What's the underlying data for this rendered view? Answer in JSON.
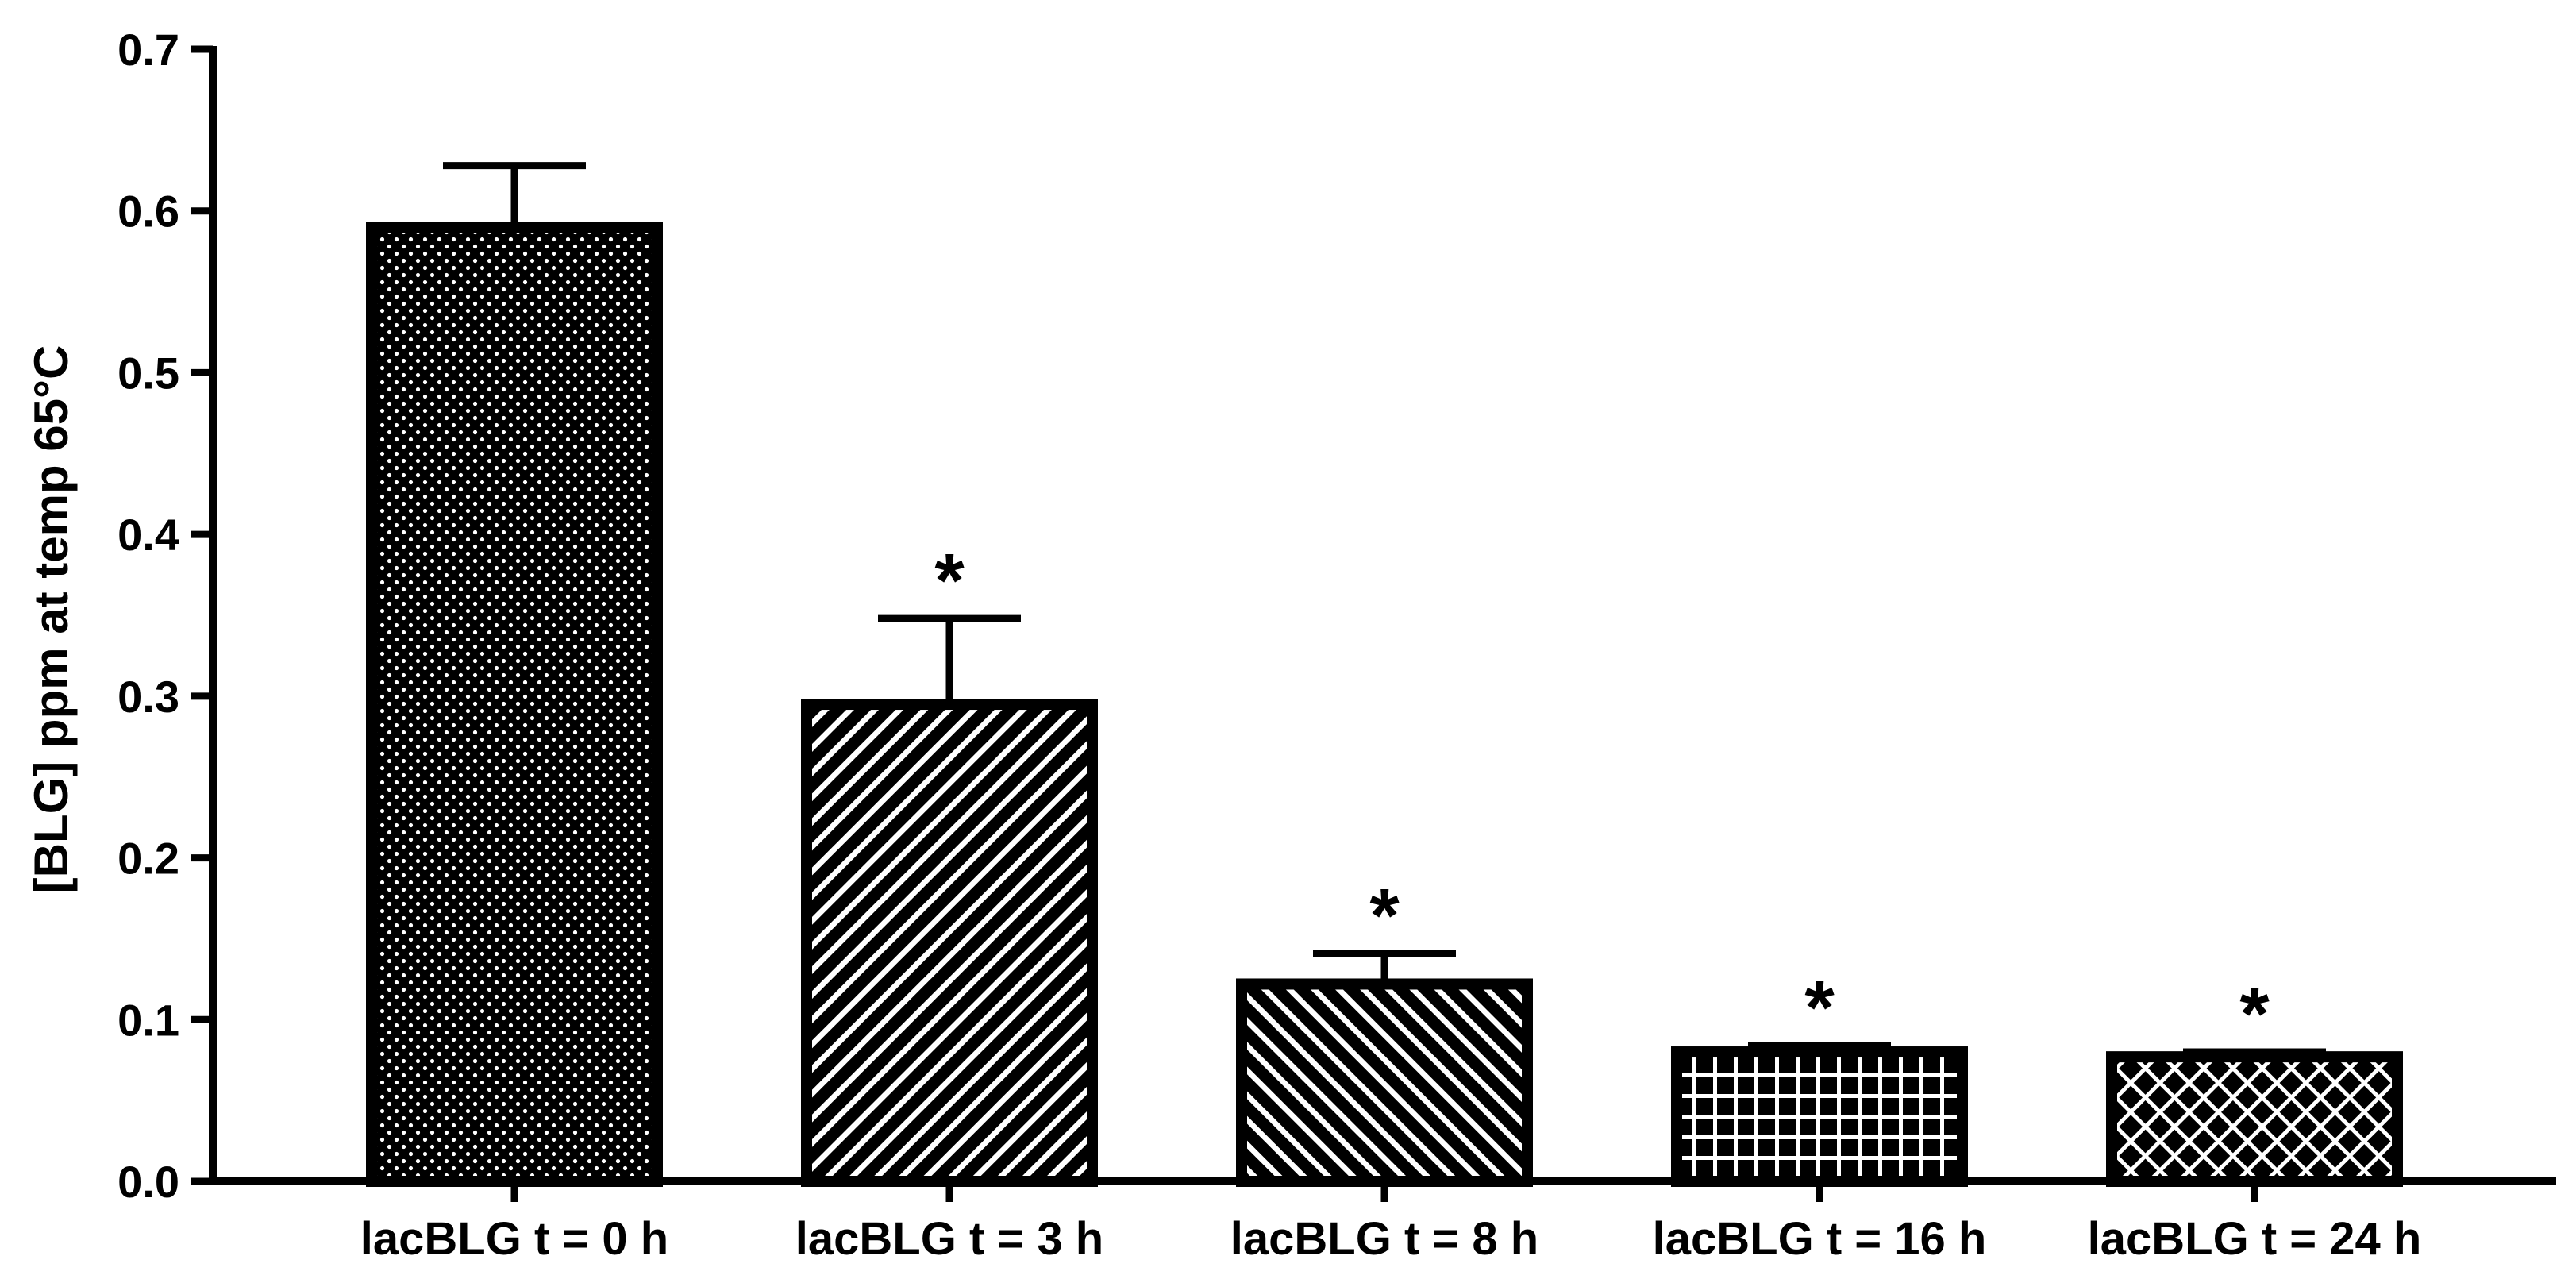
{
  "chart_data": {
    "type": "bar",
    "title": "",
    "xlabel": "",
    "ylabel": "[BLG] ppm at temp 65°C",
    "ylim": [
      0,
      0.7
    ],
    "yticks": [
      "0.0",
      "0.1",
      "0.2",
      "0.3",
      "0.4",
      "0.5",
      "0.6",
      "0.7"
    ],
    "categories": [
      "lacBLG t = 0 h",
      "lacBLG t = 3 h",
      "lacBLG t = 8 h",
      "lacBLG t = 16 h",
      "lacBLG t = 24 h"
    ],
    "values": [
      0.59,
      0.295,
      0.122,
      0.08,
      0.077
    ],
    "error_upper": [
      0.628,
      0.348,
      0.141,
      0.084,
      0.08
    ],
    "significance": [
      "",
      "*",
      "*",
      "*",
      "*"
    ],
    "patterns": [
      "dots",
      "diagonal-up",
      "diagonal-down",
      "grid",
      "crosshatch"
    ],
    "grid": false,
    "legend": "none",
    "colors": {
      "bar_stroke": "#000000",
      "pattern_bg": "#000000",
      "pattern_fg": "#ffffff"
    }
  }
}
